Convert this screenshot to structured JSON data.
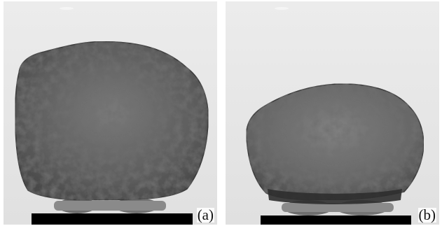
{
  "panels": [
    {
      "label": "(a)",
      "subject": "x-ray-image-of-porous-sample-before-compression"
    },
    {
      "label": "(b)",
      "subject": "x-ray-image-of-porous-sample-after-compression"
    }
  ],
  "colors": {
    "background": "#e6e6e6",
    "sample_dark": "#3c3c3c",
    "sample_light": "#8a8a8a",
    "base_plate": "#000000"
  }
}
